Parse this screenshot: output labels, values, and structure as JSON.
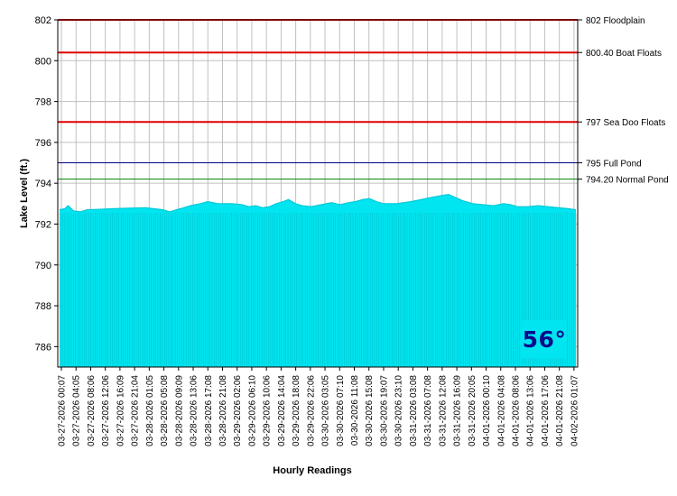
{
  "chart_data": {
    "type": "area",
    "xlabel": "Hourly Readings",
    "ylabel": "Lake Level (ft.)",
    "ylim": [
      785,
      802
    ],
    "yticks": [
      786,
      788,
      790,
      792,
      794,
      796,
      798,
      800,
      802
    ],
    "grid": true,
    "fill_color": "#00e5f0",
    "x_tick_labels": [
      "03-27-2026 00:07",
      "03-27-2026 04:05",
      "03-27-2026 08:06",
      "03-27-2026 12:06",
      "03-27-2026 16:09",
      "03-27-2026 21:04",
      "03-28-2026 01:05",
      "03-28-2026 05:08",
      "03-28-2026 09:09",
      "03-28-2026 13:06",
      "03-28-2026 17:08",
      "03-28-2026 21:08",
      "03-29-2026 02:06",
      "03-29-2026 06:10",
      "03-29-2026 10:06",
      "03-29-2026 14:04",
      "03-29-2026 18:08",
      "03-29-2026 22:06",
      "03-30-2026 03:05",
      "03-30-2026 07:10",
      "03-30-2026 11:08",
      "03-30-2026 15:08",
      "03-30-2026 19:07",
      "03-30-2026 23:10",
      "03-31-2026 03:08",
      "03-31-2026 07:08",
      "03-31-2026 12:08",
      "03-31-2026 16:09",
      "03-31-2026 20:05",
      "04-01-2026 00:10",
      "04-01-2026 04:08",
      "04-01-2026 08:06",
      "04-01-2026 13:06",
      "04-01-2026 17:06",
      "04-01-2026 21:08",
      "04-02-2026 01:07"
    ],
    "level_profile": [
      [
        0,
        792.7
      ],
      [
        3,
        792.75
      ],
      [
        5,
        792.9
      ],
      [
        8,
        792.65
      ],
      [
        12,
        792.6
      ],
      [
        16,
        792.7
      ],
      [
        22,
        792.72
      ],
      [
        30,
        792.75
      ],
      [
        40,
        792.78
      ],
      [
        50,
        792.8
      ],
      [
        55,
        792.75
      ],
      [
        60,
        792.7
      ],
      [
        64,
        792.6
      ],
      [
        68,
        792.7
      ],
      [
        72,
        792.8
      ],
      [
        76,
        792.9
      ],
      [
        82,
        793.0
      ],
      [
        86,
        793.1
      ],
      [
        92,
        793.0
      ],
      [
        100,
        793.0
      ],
      [
        106,
        792.95
      ],
      [
        110,
        792.85
      ],
      [
        114,
        792.9
      ],
      [
        118,
        792.8
      ],
      [
        122,
        792.85
      ],
      [
        126,
        793.0
      ],
      [
        130,
        793.1
      ],
      [
        133,
        793.2
      ],
      [
        137,
        793.0
      ],
      [
        141,
        792.9
      ],
      [
        146,
        792.85
      ],
      [
        152,
        792.95
      ],
      [
        158,
        793.05
      ],
      [
        163,
        792.95
      ],
      [
        168,
        793.05
      ],
      [
        172,
        793.1
      ],
      [
        176,
        793.2
      ],
      [
        180,
        793.25
      ],
      [
        184,
        793.1
      ],
      [
        188,
        793.0
      ],
      [
        196,
        793.0
      ],
      [
        204,
        793.1
      ],
      [
        210,
        793.2
      ],
      [
        216,
        793.3
      ],
      [
        222,
        793.4
      ],
      [
        226,
        793.45
      ],
      [
        230,
        793.3
      ],
      [
        234,
        793.15
      ],
      [
        240,
        793.0
      ],
      [
        246,
        792.95
      ],
      [
        252,
        792.9
      ],
      [
        258,
        793.0
      ],
      [
        262,
        792.95
      ],
      [
        266,
        792.85
      ],
      [
        272,
        792.85
      ],
      [
        278,
        792.9
      ],
      [
        284,
        792.85
      ],
      [
        290,
        792.8
      ],
      [
        296,
        792.75
      ],
      [
        300,
        792.7
      ]
    ],
    "reference_lines": [
      {
        "value": 802,
        "label": "802 Floodplain",
        "color": "#ff0000",
        "width": 2
      },
      {
        "value": 800.4,
        "label": "800.40 Boat Floats",
        "color": "#e00000",
        "width": 2
      },
      {
        "value": 797,
        "label": "797 Sea Doo Floats",
        "color": "#e00000",
        "width": 2
      },
      {
        "value": 795,
        "label": "795 Full Pond",
        "color": "#000080",
        "width": 1
      },
      {
        "value": 794.2,
        "label": "794.20 Normal Pond",
        "color": "#008000",
        "width": 1
      }
    ]
  },
  "temperature": "56°"
}
